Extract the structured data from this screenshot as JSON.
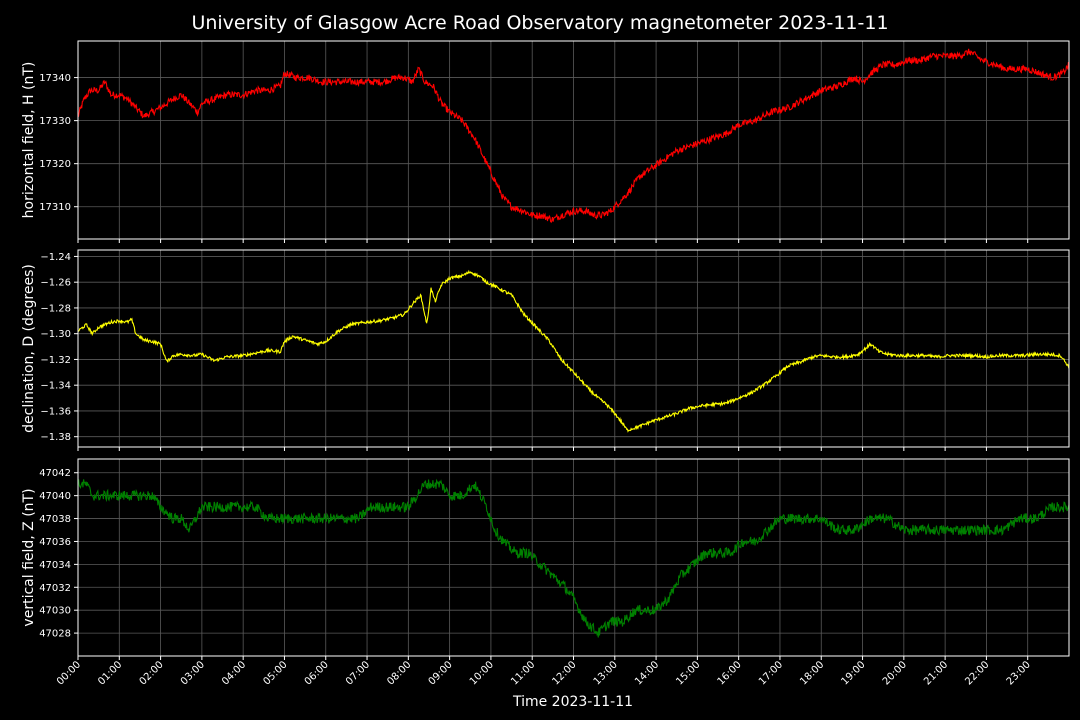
{
  "chart_data": {
    "type": "line",
    "title": "University of Glasgow Acre Road Observatory magnetometer 2023-11-11",
    "xlabel": "Time 2023-11-11",
    "x_tick_labels": [
      "00:00",
      "01:00",
      "02:00",
      "03:00",
      "04:00",
      "05:00",
      "06:00",
      "07:00",
      "08:00",
      "09:00",
      "10:00",
      "11:00",
      "12:00",
      "13:00",
      "14:00",
      "15:00",
      "16:00",
      "17:00",
      "18:00",
      "19:00",
      "20:00",
      "21:00",
      "22:00",
      "23:00"
    ],
    "x_range_hours": [
      0,
      24
    ],
    "grid": true,
    "background": "#000000",
    "panels": [
      {
        "ylabel": "horizontal field, H (nT)",
        "color": "#ff0000",
        "ylim": [
          17302.5,
          17348.5
        ],
        "y_ticks": [
          17310,
          17320,
          17330,
          17340
        ],
        "y_tick_labels": [
          "17310",
          "17320",
          "17330",
          "17340"
        ],
        "noise": 0.8,
        "series": {
          "x_hours": [
            0,
            0.15,
            0.3,
            0.5,
            0.65,
            0.8,
            1,
            1.2,
            1.4,
            1.6,
            1.8,
            2,
            2.3,
            2.5,
            2.7,
            2.9,
            3,
            3.3,
            3.6,
            4,
            4.3,
            4.6,
            4.9,
            5,
            5.3,
            5.6,
            5.9,
            6.2,
            6.5,
            6.8,
            7.1,
            7.4,
            7.7,
            7.9,
            8.1,
            8.25,
            8.4,
            8.6,
            8.8,
            9,
            9.3,
            9.6,
            9.9,
            10.1,
            10.3,
            10.5,
            10.8,
            11,
            11.2,
            11.5,
            11.7,
            12,
            12.3,
            12.5,
            12.7,
            12.9,
            13.1,
            13.3,
            13.6,
            13.9,
            14.2,
            14.5,
            14.8,
            15.1,
            15.4,
            15.7,
            16,
            16.4,
            16.8,
            17.2,
            17.6,
            18,
            18.4,
            18.8,
            19,
            19.2,
            19.5,
            19.8,
            20.1,
            20.4,
            20.7,
            21,
            21.3,
            21.6,
            21.9,
            22.2,
            22.5,
            22.8,
            23,
            23.3,
            23.6,
            23.85,
            24
          ],
          "values": [
            17331,
            17335,
            17337,
            17337,
            17339,
            17336,
            17336,
            17335,
            17333,
            17331,
            17332,
            17333,
            17335,
            17336,
            17334,
            17332,
            17334,
            17335,
            17336,
            17336,
            17337,
            17337,
            17338,
            17341,
            17340,
            17340,
            17339,
            17339,
            17339,
            17339,
            17339,
            17339,
            17340,
            17340,
            17339,
            17342,
            17339,
            17338,
            17334,
            17332,
            17330,
            17326,
            17320,
            17316,
            17312,
            17310,
            17309,
            17308,
            17308,
            17307,
            17308,
            17309,
            17309,
            17308,
            17308,
            17309,
            17311,
            17313,
            17317,
            17319,
            17321,
            17323,
            17324,
            17325,
            17326,
            17327,
            17329,
            17330,
            17332,
            17333,
            17335,
            17337,
            17338,
            17340,
            17339,
            17341,
            17343,
            17343,
            17344,
            17344,
            17345,
            17345,
            17345,
            17346,
            17344,
            17343,
            17342,
            17342,
            17342,
            17341,
            17340,
            17341,
            17343
          ]
        }
      },
      {
        "ylabel": "declination, D (degrees)",
        "color": "#ffff00",
        "ylim": [
          -1.388,
          -1.235
        ],
        "y_ticks": [
          -1.38,
          -1.36,
          -1.34,
          -1.32,
          -1.3,
          -1.28,
          -1.26,
          -1.24
        ],
        "y_tick_labels": [
          "−1.38",
          "−1.36",
          "−1.34",
          "−1.32",
          "−1.30",
          "−1.28",
          "−1.26",
          "−1.24"
        ],
        "noise": 0.0012,
        "series": {
          "x_hours": [
            0,
            0.2,
            0.35,
            0.5,
            0.8,
            1,
            1.2,
            1.3,
            1.4,
            1.6,
            1.8,
            2,
            2.15,
            2.3,
            2.5,
            2.8,
            3,
            3.3,
            3.6,
            4,
            4.3,
            4.6,
            4.9,
            5,
            5.2,
            5.5,
            5.8,
            6,
            6.3,
            6.6,
            7,
            7.3,
            7.6,
            7.9,
            8.1,
            8.3,
            8.45,
            8.55,
            8.65,
            8.8,
            9,
            9.3,
            9.5,
            9.7,
            9.9,
            10.2,
            10.5,
            10.8,
            11.1,
            11.4,
            11.7,
            12,
            12.2,
            12.4,
            12.6,
            12.8,
            13,
            13.15,
            13.3,
            13.6,
            13.9,
            14.2,
            14.5,
            14.8,
            15.1,
            15.4,
            15.7,
            16,
            16.3,
            16.6,
            16.9,
            17.2,
            17.5,
            17.8,
            18,
            18.3,
            18.6,
            18.9,
            19.2,
            19.4,
            19.6,
            19.9,
            20.2,
            20.5,
            20.8,
            21.1,
            21.4,
            21.7,
            22,
            22.3,
            22.6,
            22.9,
            23.2,
            23.5,
            23.8,
            24
          ],
          "values": [
            -1.298,
            -1.293,
            -1.3,
            -1.295,
            -1.291,
            -1.29,
            -1.291,
            -1.289,
            -1.3,
            -1.305,
            -1.306,
            -1.308,
            -1.322,
            -1.317,
            -1.316,
            -1.317,
            -1.316,
            -1.321,
            -1.318,
            -1.317,
            -1.315,
            -1.313,
            -1.314,
            -1.306,
            -1.302,
            -1.305,
            -1.308,
            -1.306,
            -1.298,
            -1.293,
            -1.291,
            -1.29,
            -1.288,
            -1.285,
            -1.277,
            -1.27,
            -1.293,
            -1.265,
            -1.275,
            -1.262,
            -1.257,
            -1.255,
            -1.252,
            -1.255,
            -1.26,
            -1.265,
            -1.27,
            -1.285,
            -1.295,
            -1.305,
            -1.32,
            -1.33,
            -1.337,
            -1.344,
            -1.35,
            -1.355,
            -1.362,
            -1.368,
            -1.375,
            -1.372,
            -1.368,
            -1.365,
            -1.362,
            -1.358,
            -1.356,
            -1.355,
            -1.354,
            -1.35,
            -1.346,
            -1.34,
            -1.333,
            -1.325,
            -1.322,
            -1.318,
            -1.317,
            -1.318,
            -1.318,
            -1.316,
            -1.308,
            -1.314,
            -1.316,
            -1.317,
            -1.317,
            -1.317,
            -1.318,
            -1.317,
            -1.317,
            -1.317,
            -1.318,
            -1.317,
            -1.317,
            -1.317,
            -1.316,
            -1.316,
            -1.317,
            -1.326
          ]
        }
      },
      {
        "ylabel": "vertical field, Z (nT)",
        "color": "#008000",
        "ylim": [
          47026,
          47043.2
        ],
        "y_ticks": [
          47028,
          47030,
          47032,
          47034,
          47036,
          47038,
          47040,
          47042
        ],
        "y_tick_labels": [
          "47028",
          "47030",
          "47032",
          "47034",
          "47036",
          "47038",
          "47040",
          "47042"
        ],
        "noise": 0.45,
        "series": {
          "x_hours": [
            0,
            0.2,
            0.35,
            0.6,
            0.9,
            1.2,
            1.5,
            1.8,
            2,
            2.3,
            2.5,
            2.7,
            3,
            3.3,
            3.6,
            4,
            4.3,
            4.6,
            5,
            5.3,
            5.6,
            5.9,
            6.2,
            6.5,
            6.8,
            7.1,
            7.4,
            7.7,
            8,
            8.2,
            8.4,
            8.6,
            8.8,
            9,
            9.3,
            9.6,
            9.9,
            10.1,
            10.3,
            10.6,
            10.9,
            11.2,
            11.5,
            11.8,
            12,
            12.3,
            12.6,
            12.9,
            13.2,
            13.5,
            13.8,
            14,
            14.3,
            14.6,
            14.9,
            15.2,
            15.5,
            15.8,
            16.1,
            16.4,
            16.7,
            17,
            17.3,
            17.6,
            18,
            18.4,
            18.8,
            19.2,
            19.6,
            20,
            20.4,
            20.8,
            21.2,
            21.6,
            22,
            22.4,
            22.8,
            23.2,
            23.6,
            24
          ],
          "values": [
            47041,
            47041,
            47040,
            47040,
            47040,
            47040,
            47040,
            47040,
            47039,
            47038,
            47038,
            47037,
            47039,
            47039,
            47039,
            47039,
            47039,
            47038,
            47038,
            47038,
            47038,
            47038,
            47038,
            47038,
            47038,
            47039,
            47039,
            47039,
            47039,
            47040,
            47041,
            47041,
            47041,
            47040,
            47040,
            47041,
            47039,
            47037,
            47036,
            47035,
            47035,
            47034,
            47033,
            47032,
            47031,
            47029,
            47028,
            47029,
            47029,
            47030,
            47030,
            47030,
            47031,
            47033,
            47034,
            47035,
            47035,
            47035,
            47036,
            47036,
            47037,
            47038,
            47038,
            47038,
            47038,
            47037,
            47037,
            47038,
            47038,
            47037,
            47037,
            47037,
            47037,
            47037,
            47037,
            47037,
            47038,
            47038,
            47039,
            47039
          ]
        }
      }
    ]
  }
}
